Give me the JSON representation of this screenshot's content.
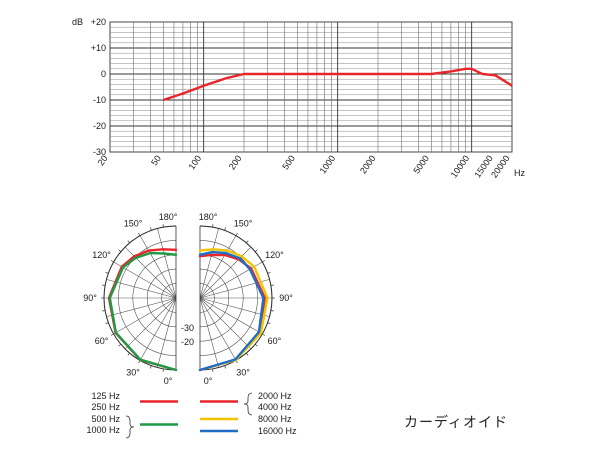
{
  "chart_data": [
    {
      "type": "line",
      "title": "",
      "x_scale": "log",
      "xlim": [
        20,
        20000
      ],
      "ylim": [
        -30,
        20
      ],
      "xlabel": "Hz",
      "ylabel": "dB",
      "y_ticks": [
        {
          "value": 20,
          "label": "+20"
        },
        {
          "value": 10,
          "label": "+10"
        },
        {
          "value": 0,
          "label": "0"
        },
        {
          "value": -10,
          "label": "-10"
        },
        {
          "value": -20,
          "label": "-20"
        },
        {
          "value": -30,
          "label": "-30"
        }
      ],
      "x_ticks": [
        {
          "value": 20,
          "label": "20"
        },
        {
          "value": 50,
          "label": "50"
        },
        {
          "value": 100,
          "label": "100"
        },
        {
          "value": 200,
          "label": "200"
        },
        {
          "value": 500,
          "label": "500"
        },
        {
          "value": 1000,
          "label": "1000"
        },
        {
          "value": 2000,
          "label": "2000"
        },
        {
          "value": 5000,
          "label": "5000"
        },
        {
          "value": 10000,
          "label": "10000"
        },
        {
          "value": 15000,
          "label": "15000"
        },
        {
          "value": 20000,
          "label": "20000"
        }
      ],
      "grid": true,
      "series": [
        {
          "color": "#e8262a",
          "x": [
            50,
            70,
            100,
            150,
            200,
            300,
            500,
            1000,
            2000,
            5000,
            7000,
            9000,
            10000,
            12000,
            15000,
            20000
          ],
          "y": [
            -10,
            -7.5,
            -4.5,
            -1.5,
            0,
            0,
            0,
            0,
            0,
            0,
            1,
            2,
            2,
            0,
            -0.5,
            -4.5
          ]
        }
      ]
    },
    {
      "type": "polar",
      "title": "",
      "angle_ticks": [
        {
          "angle": 0,
          "label": "0°"
        },
        {
          "angle": 30,
          "label": "30°"
        },
        {
          "angle": 60,
          "label": "60°"
        },
        {
          "angle": 90,
          "label": "90°"
        },
        {
          "angle": 120,
          "label": "120°"
        },
        {
          "angle": 150,
          "label": "150°"
        },
        {
          "angle": 180,
          "label": "180°"
        }
      ],
      "radial_ticks": [
        {
          "value": -20,
          "label": "-20"
        },
        {
          "value": -30,
          "label": "-30"
        }
      ],
      "rlim": [
        -50,
        0
      ],
      "left_half": {
        "series": [
          {
            "name_ref": "low",
            "color": "#e8262a",
            "angle": [
              0,
              30,
              60,
              90,
              120,
              135,
              150,
              165,
              180
            ],
            "value": [
              0,
              -0.4,
              -1.6,
              -3.5,
              -6.5,
              -9,
              -12,
              -15,
              -16.5
            ]
          },
          {
            "name_ref": "mid",
            "color": "#1e9a45",
            "angle": [
              0,
              30,
              60,
              90,
              120,
              135,
              150,
              165,
              180
            ],
            "value": [
              0,
              -0.5,
              -1.8,
              -4,
              -7.5,
              -10.5,
              -14,
              -18,
              -20
            ]
          }
        ]
      },
      "right_half": {
        "series": [
          {
            "name_ref": "2000-4000",
            "color": "#e8262a",
            "angle": [
              0,
              30,
              60,
              90,
              120,
              135,
              150,
              165,
              180
            ],
            "value": [
              0,
              -0.6,
              -2.2,
              -5,
              -9,
              -12,
              -15.5,
              -19,
              -21
            ]
          },
          {
            "name_ref": "8000",
            "color": "#f2c400",
            "angle": [
              0,
              30,
              60,
              90,
              120,
              135,
              150,
              165,
              180
            ],
            "value": [
              0,
              -0.3,
              -1.2,
              -3.2,
              -6.5,
              -9,
              -12,
              -15,
              -17
            ]
          },
          {
            "name_ref": "16000",
            "color": "#1e6ec8",
            "angle": [
              0,
              30,
              60,
              90,
              120,
              135,
              150,
              165,
              180
            ],
            "value": [
              0,
              -0.8,
              -2.8,
              -6,
              -10,
              -11,
              -14,
              -17,
              -20
            ]
          }
        ]
      },
      "legend": [
        {
          "labels": [
            "125 Hz",
            "250 Hz"
          ],
          "color": "#e8262a",
          "side": "left",
          "braced": false
        },
        {
          "labels": [
            "500 Hz",
            "1000 Hz"
          ],
          "color": "#1e9a45",
          "side": "left",
          "braced": true
        },
        {
          "labels": [
            "2000 Hz",
            "4000 Hz"
          ],
          "color": "#e8262a",
          "side": "right",
          "braced": true
        },
        {
          "labels": [
            "8000 Hz"
          ],
          "color": "#f2c400",
          "side": "right",
          "braced": false
        },
        {
          "labels": [
            "16000 Hz"
          ],
          "color": "#1e6ec8",
          "side": "right",
          "braced": false
        }
      ]
    }
  ],
  "pattern_label": "カーディオイド"
}
